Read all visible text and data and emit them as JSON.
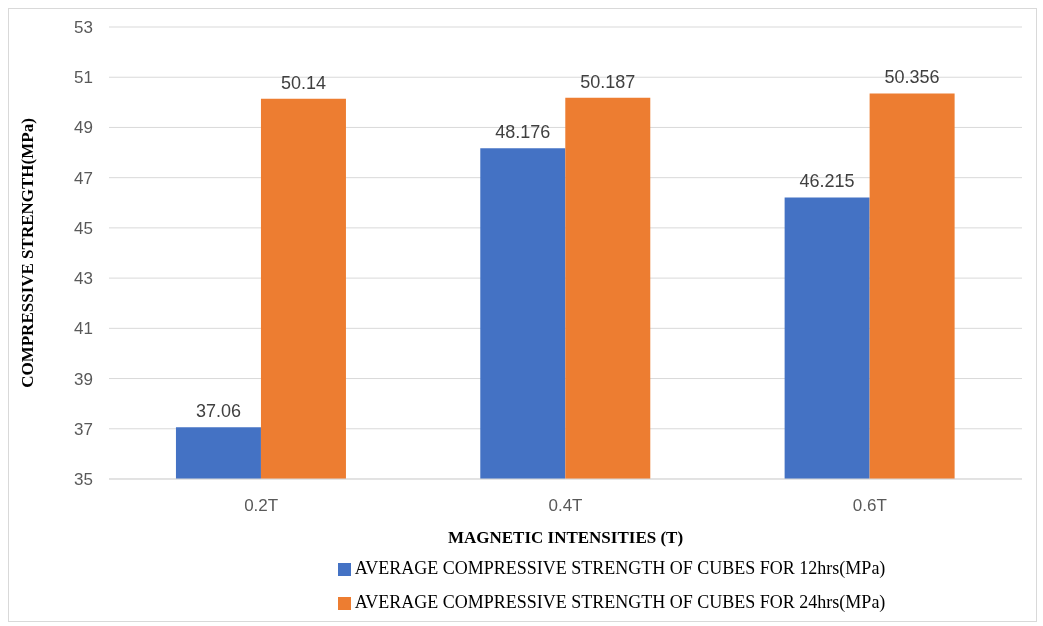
{
  "chart_data": {
    "type": "bar",
    "xlabel": "MAGNETIC INTENSITIES (T)",
    "ylabel": "COMPRESSIVE STRENGTH(MPa)",
    "categories": [
      "0.2T",
      "0.4T",
      "0.6T"
    ],
    "series": [
      {
        "name": "AVERAGE COMPRESSIVE STRENGTH OF CUBES FOR 12hrs(MPa)",
        "color": "#4472c4",
        "values": [
          37.06,
          48.176,
          46.215
        ]
      },
      {
        "name": "AVERAGE COMPRESSIVE STRENGTH OF CUBES FOR 24hrs(MPa)",
        "color": "#ed7d31",
        "values": [
          50.14,
          50.187,
          50.356
        ]
      }
    ],
    "ylim": [
      35,
      53
    ],
    "yticks": [
      35,
      37,
      39,
      41,
      43,
      45,
      47,
      49,
      51,
      53
    ],
    "grid": "y",
    "legend": "bottom",
    "data_labels": true
  }
}
